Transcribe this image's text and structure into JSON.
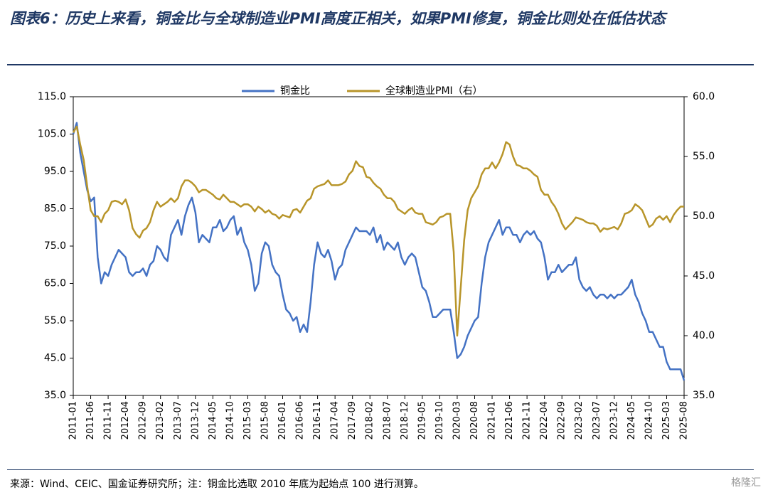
{
  "chart_data": {
    "type": "line",
    "title": "图表6：历史上来看，铜金比与全球制造业PMI高度正相关，如果PMI修复，铜金比则处在低估状态",
    "source": "来源：Wind、CEIC、国金证券研究所；注：铜金比选取 2010 年底为起始点 100 进行测算。",
    "watermark": "格隆汇",
    "categories": [
      "2011-01",
      null,
      null,
      null,
      null,
      "2011-06",
      null,
      null,
      null,
      null,
      "2011-11",
      null,
      null,
      null,
      null,
      "2012-04",
      null,
      null,
      null,
      null,
      "2012-09",
      null,
      null,
      null,
      null,
      "2013-02",
      null,
      null,
      null,
      null,
      "2013-07",
      null,
      null,
      null,
      null,
      "2013-12",
      null,
      null,
      null,
      null,
      "2014-05",
      null,
      null,
      null,
      null,
      "2014-10",
      null,
      null,
      null,
      null,
      "2015-03",
      null,
      null,
      null,
      null,
      "2015-08",
      null,
      null,
      null,
      null,
      "2016-01",
      null,
      null,
      null,
      null,
      "2016-06",
      null,
      null,
      null,
      null,
      "2016-11",
      null,
      null,
      null,
      null,
      "2017-04",
      null,
      null,
      null,
      null,
      "2017-09",
      null,
      null,
      null,
      null,
      "2018-02",
      null,
      null,
      null,
      null,
      "2018-07",
      null,
      null,
      null,
      null,
      "2018-12",
      null,
      null,
      null,
      null,
      "2019-05",
      null,
      null,
      null,
      null,
      "2019-10",
      null,
      null,
      null,
      null,
      "2020-03",
      null,
      null,
      null,
      null,
      "2020-08",
      null,
      null,
      null,
      null,
      "2021-01",
      null,
      null,
      null,
      null,
      "2021-06",
      null,
      null,
      null,
      null,
      "2021-11",
      null,
      null,
      null,
      null,
      "2022-04",
      null,
      null,
      null,
      null,
      "2022-09",
      null,
      null,
      null,
      null,
      "2023-02",
      null,
      null,
      null,
      null,
      "2023-07",
      null,
      null,
      null,
      null,
      "2023-12",
      null,
      null,
      null,
      null,
      "2024-05",
      null,
      null,
      null,
      null,
      "2024-10",
      null,
      null,
      null,
      null,
      "2025-03",
      null,
      null,
      null,
      null,
      "2025-08"
    ],
    "series": [
      {
        "name": "铜金比",
        "color": "#4472c4",
        "axis": "y",
        "values": [
          105,
          108,
          100,
          95,
          90,
          87,
          88,
          72,
          65,
          68,
          67,
          70,
          72,
          74,
          73,
          72,
          68,
          67,
          68,
          68,
          69,
          67,
          70,
          71,
          75,
          74,
          72,
          71,
          78,
          80,
          82,
          78,
          83,
          86,
          88,
          84,
          76,
          78,
          77,
          76,
          80,
          80,
          82,
          79,
          80,
          82,
          83,
          78,
          80,
          76,
          74,
          70,
          63,
          65,
          73,
          76,
          75,
          70,
          68,
          67,
          62,
          58,
          57,
          55,
          56,
          52,
          54,
          52,
          60,
          70,
          76,
          73,
          72,
          74,
          71,
          66,
          69,
          70,
          74,
          76,
          78,
          80,
          79,
          79,
          79,
          78,
          80,
          76,
          78,
          74,
          76,
          75,
          74,
          76,
          72,
          70,
          72,
          73,
          72,
          68,
          64,
          63,
          60,
          56,
          56,
          57,
          58,
          58,
          58,
          52,
          45,
          46,
          48,
          51,
          53,
          55,
          56,
          65,
          72,
          76,
          78,
          80,
          82,
          78,
          80,
          80,
          78,
          78,
          76,
          78,
          79,
          78,
          79,
          77,
          76,
          72,
          66,
          68,
          68,
          70,
          68,
          69,
          70,
          70,
          72,
          66,
          64,
          63,
          64,
          62,
          61,
          62,
          62,
          61,
          62,
          61,
          62,
          62,
          63,
          64,
          66,
          62,
          60,
          57,
          55,
          52,
          52,
          50,
          48,
          48,
          44,
          42,
          42,
          42,
          42,
          39
        ]
      },
      {
        "name": "全球制造业PMI（右）",
        "color": "#b8952a",
        "axis": "y2",
        "values": [
          57,
          57.5,
          56,
          54.7,
          52.5,
          50.5,
          50,
          50,
          49.5,
          50.2,
          50.5,
          51.2,
          51.3,
          51.2,
          51,
          51.4,
          50.5,
          49,
          48.5,
          48.2,
          48.8,
          49,
          49.5,
          50.5,
          51.2,
          50.8,
          51,
          51.2,
          51.5,
          51.2,
          51.5,
          52.5,
          53,
          53,
          52.8,
          52.5,
          52,
          52.2,
          52.2,
          52,
          51.8,
          51.5,
          51.4,
          51.8,
          51.5,
          51.2,
          51.2,
          51,
          50.8,
          51,
          51,
          50.8,
          50.4,
          50.8,
          50.6,
          50.3,
          50.5,
          50.2,
          50.1,
          49.8,
          50.1,
          50,
          49.9,
          50.5,
          50.6,
          50.3,
          50.8,
          51.3,
          51.5,
          52.3,
          52.5,
          52.6,
          52.7,
          53,
          52.6,
          52.6,
          52.6,
          52.7,
          52.9,
          53.5,
          53.8,
          54.6,
          54.2,
          54.1,
          53.3,
          53.2,
          52.8,
          52.5,
          52.3,
          51.8,
          51.5,
          51.5,
          51.2,
          50.6,
          50.4,
          50.2,
          50.5,
          50.7,
          50.3,
          50.2,
          50.2,
          49.5,
          49.4,
          49.3,
          49.5,
          49.9,
          50,
          50.2,
          50.2,
          47,
          40,
          44,
          48,
          50.5,
          51.5,
          52,
          52.5,
          53.5,
          54,
          54,
          54.5,
          54,
          54.5,
          55.2,
          56.2,
          56,
          55,
          54.3,
          54.2,
          54,
          54,
          53.8,
          53.5,
          53.3,
          52.2,
          51.8,
          51.8,
          51.2,
          50.8,
          50.2,
          49.4,
          48.9,
          49.2,
          49.5,
          49.9,
          49.8,
          49.7,
          49.5,
          49.4,
          49.4,
          49.2,
          48.7,
          49,
          48.9,
          49,
          49.1,
          48.9,
          49.4,
          50.2,
          50.3,
          50.5,
          51,
          50.8,
          50.5,
          49.8,
          49.1,
          49.3,
          49.8,
          50,
          49.7,
          50,
          49.5,
          50.1,
          50.5,
          50.8,
          50.8
        ]
      }
    ],
    "ylim": [
      35,
      115
    ],
    "yticks": [
      {
        "value": 35,
        "label": "35.0"
      },
      {
        "value": 45,
        "label": "45.0"
      },
      {
        "value": 55,
        "label": "55.0"
      },
      {
        "value": 65,
        "label": "65.0"
      },
      {
        "value": 75,
        "label": "75.0"
      },
      {
        "value": 85,
        "label": "85.0"
      },
      {
        "value": 95,
        "label": "95.0"
      },
      {
        "value": 105,
        "label": "105.0"
      },
      {
        "value": 115,
        "label": "115.0"
      }
    ],
    "y2lim": [
      35,
      60
    ],
    "y2ticks": [
      {
        "value": 35,
        "label": "35.0"
      },
      {
        "value": 40,
        "label": "40.0"
      },
      {
        "value": 45,
        "label": "45.0"
      },
      {
        "value": 50,
        "label": "50.0"
      },
      {
        "value": 55,
        "label": "55.0"
      },
      {
        "value": 60,
        "label": "60.0"
      }
    ],
    "grid": false,
    "legend": "top"
  }
}
